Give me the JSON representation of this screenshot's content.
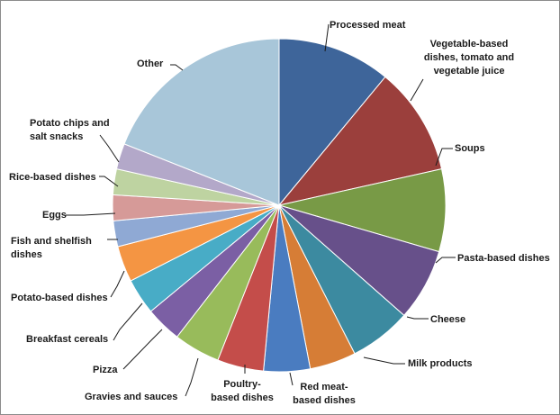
{
  "chart_data": {
    "type": "pie",
    "title": "",
    "legend": "none",
    "slices": [
      {
        "label": "Processed meat",
        "value": 11.0,
        "color": "#3e659a"
      },
      {
        "label": "Vegetable-based dishes, tomato and vegetable juice",
        "value": 10.5,
        "color": "#9b3f3c"
      },
      {
        "label": "Soups",
        "value": 8.0,
        "color": "#789a46"
      },
      {
        "label": "Pasta-based dishes",
        "value": 7.0,
        "color": "#67508a"
      },
      {
        "label": "Cheese",
        "value": 6.0,
        "color": "#3c8aa0"
      },
      {
        "label": "Milk products",
        "value": 4.5,
        "color": "#d67d36"
      },
      {
        "label": "Red meat-based dishes",
        "value": 4.5,
        "color": "#4a7cc0"
      },
      {
        "label": "Poultry-based dishes",
        "value": 4.5,
        "color": "#c44d4a"
      },
      {
        "label": "Gravies and sauces",
        "value": 4.5,
        "color": "#98bb5b"
      },
      {
        "label": "Pizza",
        "value": 3.5,
        "color": "#7b5fa4"
      },
      {
        "label": "Breakfast cereals",
        "value": 3.5,
        "color": "#48acc6"
      },
      {
        "label": "Potato-based dishes",
        "value": 3.5,
        "color": "#f49543"
      },
      {
        "label": "Fish and shelfish dishes",
        "value": 2.5,
        "color": "#8fa9d4"
      },
      {
        "label": "Eggs",
        "value": 2.5,
        "color": "#d69a98"
      },
      {
        "label": "Rice-based dishes",
        "value": 2.5,
        "color": "#bed3a1"
      },
      {
        "label": "Potato chips and salt snacks",
        "value": 2.5,
        "color": "#b3a8c9"
      },
      {
        "label": "Other",
        "value": 19.0,
        "color": "#a8c6d9"
      }
    ]
  }
}
